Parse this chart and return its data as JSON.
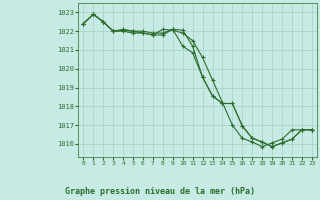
{
  "title": "Graphe pression niveau de la mer (hPa)",
  "bg_color": "#c8eae4",
  "grid_color": "#a8d4cc",
  "line_color": "#2d6e2d",
  "marker_color": "#2d6e2d",
  "ylim": [
    1015.3,
    1023.5
  ],
  "xlim": [
    -0.5,
    23.5
  ],
  "yticks": [
    1016,
    1017,
    1018,
    1019,
    1020,
    1021,
    1022,
    1023
  ],
  "xticks": [
    0,
    1,
    2,
    3,
    4,
    5,
    6,
    7,
    8,
    9,
    10,
    11,
    12,
    13,
    14,
    15,
    16,
    17,
    18,
    19,
    20,
    21,
    22,
    23
  ],
  "series": [
    [
      1022.4,
      1022.9,
      1022.5,
      1022.0,
      1022.0,
      1021.9,
      1021.9,
      1021.8,
      1021.8,
      1022.1,
      1021.2,
      1020.85,
      1019.55,
      1018.55,
      1018.15,
      1018.15,
      1016.95,
      1016.3,
      1016.1,
      1015.85,
      1016.05,
      1016.25,
      1016.75,
      1016.75
    ],
    [
      1022.4,
      1022.9,
      1022.5,
      1022.0,
      1022.05,
      1022.0,
      1022.0,
      1021.9,
      1021.9,
      1022.1,
      1022.05,
      1021.2,
      1019.55,
      1018.55,
      1018.15,
      1018.15,
      1016.95,
      1016.3,
      1016.1,
      1015.85,
      1016.05,
      1016.25,
      1016.75,
      1016.75
    ],
    [
      1022.4,
      1022.9,
      1022.5,
      1022.0,
      1022.1,
      1022.0,
      1021.9,
      1021.8,
      1022.1,
      1022.05,
      1021.9,
      1021.5,
      1020.6,
      1019.4,
      1018.2,
      1017.0,
      1016.3,
      1016.1,
      1015.85,
      1016.05,
      1016.25,
      1016.75,
      1016.75,
      1016.75
    ]
  ]
}
